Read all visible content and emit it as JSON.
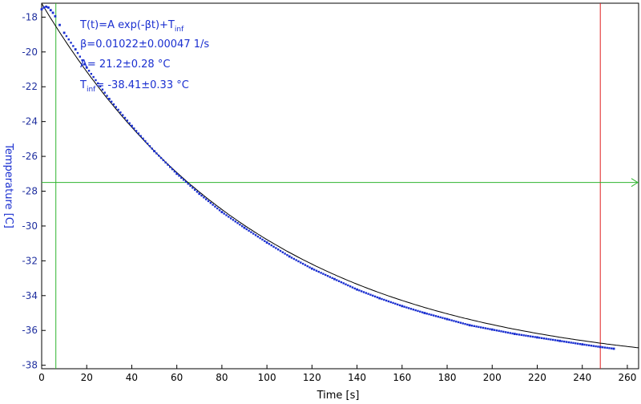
{
  "chart_data": {
    "type": "scatter",
    "title": "",
    "xlabel": "Time [s]",
    "ylabel": "Temperature [C]",
    "xlim": [
      0,
      265
    ],
    "ylim": [
      -38.2,
      -17.2
    ],
    "xticks": [
      0,
      20,
      40,
      60,
      80,
      100,
      120,
      140,
      160,
      180,
      200,
      220,
      240,
      260
    ],
    "yticks": [
      -18,
      -20,
      -22,
      -24,
      -26,
      -28,
      -30,
      -32,
      -34,
      -36,
      -38
    ],
    "grid": false,
    "series": [
      {
        "kind": "points",
        "color": "#1a2fd0",
        "x": [
          0,
          1,
          2,
          3,
          4,
          5,
          6,
          8,
          10,
          15,
          20,
          30,
          40,
          50,
          60,
          70,
          80,
          90,
          100,
          110,
          120,
          130,
          140,
          150,
          160,
          170,
          180,
          190,
          200,
          210,
          220,
          230,
          240,
          248,
          254
        ],
        "y": [
          -17.55,
          -17.45,
          -17.4,
          -17.45,
          -17.6,
          -17.75,
          -17.95,
          -18.45,
          -18.9,
          -19.85,
          -20.9,
          -22.7,
          -24.25,
          -25.7,
          -27.0,
          -28.15,
          -29.2,
          -30.1,
          -30.95,
          -31.75,
          -32.45,
          -33.05,
          -33.65,
          -34.15,
          -34.6,
          -35.0,
          -35.35,
          -35.7,
          -35.95,
          -36.2,
          -36.4,
          -36.6,
          -36.8,
          -36.95,
          -37.05
        ]
      },
      {
        "kind": "fit-line",
        "color": "#000000",
        "formula": "T(t)=A exp(-βt)+T_inf",
        "A": 21.2,
        "beta": 0.01022,
        "T_inf": -38.41,
        "x_range": [
          0,
          265
        ]
      }
    ],
    "markers": {
      "vertical_green_x": 6.3,
      "vertical_red_x": 248,
      "horizontal_green_y": -27.5,
      "green_color": "#2fb52f",
      "red_color": "#e02020"
    },
    "annotation": {
      "formula_main": "T(t)=A exp(-βt)+T",
      "formula_sub": "inf",
      "beta_line": "β=0.01022±0.00047 1/s",
      "a_line": "A= 21.2±0.28 °C",
      "tinf_main": "T",
      "tinf_sub": "inf",
      "tinf_rest": "= -38.41±0.33 °C"
    }
  }
}
